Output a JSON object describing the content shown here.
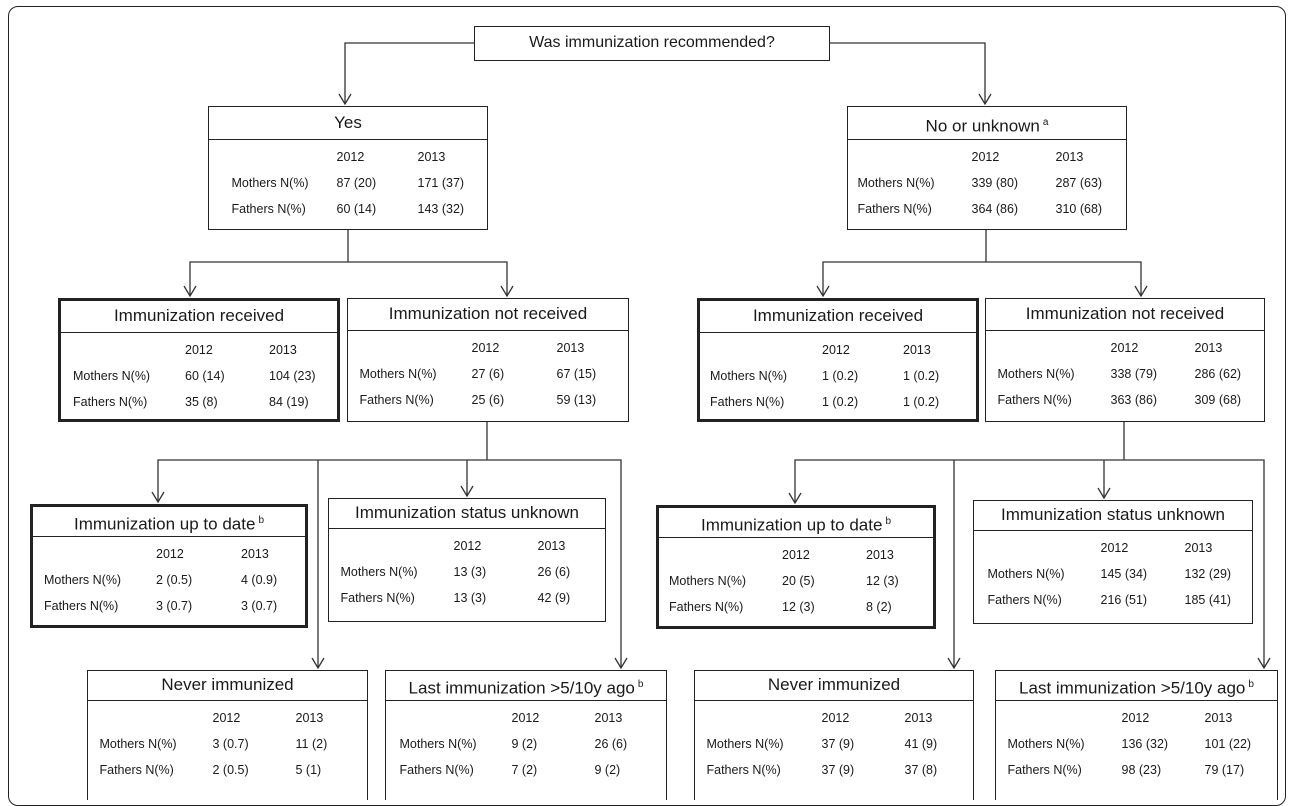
{
  "question": "Was immunization recommended?",
  "years": [
    "2012",
    "2013"
  ],
  "boxes": {
    "yes": {
      "title": "Yes",
      "sup": "",
      "rows": [
        {
          "label": "Mothers N(%)",
          "v2012": "87 (20)",
          "v2013": "171 (37)"
        },
        {
          "label": "Fathers N(%)",
          "v2012": "60 (14)",
          "v2013": "143 (32)"
        }
      ]
    },
    "no": {
      "title": "No or unknown",
      "sup": "a",
      "rows": [
        {
          "label": "Mothers N(%)",
          "v2012": "339 (80)",
          "v2013": "287 (63)"
        },
        {
          "label": "Fathers N(%)",
          "v2012": "364 (86)",
          "v2013": "310 (68)"
        }
      ]
    },
    "yes_received": {
      "title": "Immunization received",
      "sup": "",
      "rows": [
        {
          "label": "Mothers N(%)",
          "v2012": "60 (14)",
          "v2013": "104 (23)"
        },
        {
          "label": "Fathers N(%)",
          "v2012": "35 (8)",
          "v2013": "84 (19)"
        }
      ]
    },
    "yes_not_received": {
      "title": "Immunization not received",
      "sup": "",
      "rows": [
        {
          "label": "Mothers N(%)",
          "v2012": "27 (6)",
          "v2013": "67 (15)"
        },
        {
          "label": "Fathers N(%)",
          "v2012": "25 (6)",
          "v2013": "59 (13)"
        }
      ]
    },
    "no_received": {
      "title": "Immunization received",
      "sup": "",
      "rows": [
        {
          "label": "Mothers N(%)",
          "v2012": "1 (0.2)",
          "v2013": "1 (0.2)"
        },
        {
          "label": "Fathers N(%)",
          "v2012": "1 (0.2)",
          "v2013": "1 (0.2)"
        }
      ]
    },
    "no_not_received": {
      "title": "Immunization not received",
      "sup": "",
      "rows": [
        {
          "label": "Mothers N(%)",
          "v2012": "338 (79)",
          "v2013": "286 (62)"
        },
        {
          "label": "Fathers N(%)",
          "v2012": "363 (86)",
          "v2013": "309 (68)"
        }
      ]
    },
    "yes_uptodate": {
      "title": "Immunization up to date",
      "sup": "b",
      "rows": [
        {
          "label": "Mothers N(%)",
          "v2012": "2 (0.5)",
          "v2013": "4 (0.9)"
        },
        {
          "label": "Fathers N(%)",
          "v2012": "3 (0.7)",
          "v2013": "3 (0.7)"
        }
      ]
    },
    "yes_status_unknown": {
      "title": "Immunization status unknown",
      "sup": "",
      "rows": [
        {
          "label": "Mothers N(%)",
          "v2012": "13 (3)",
          "v2013": "26 (6)"
        },
        {
          "label": "Fathers N(%)",
          "v2012": "13 (3)",
          "v2013": "42 (9)"
        }
      ]
    },
    "no_uptodate": {
      "title": "Immunization up to date",
      "sup": "b",
      "rows": [
        {
          "label": "Mothers N(%)",
          "v2012": "20 (5)",
          "v2013": "12 (3)"
        },
        {
          "label": "Fathers N(%)",
          "v2012": "12 (3)",
          "v2013": "8 (2)"
        }
      ]
    },
    "no_status_unknown": {
      "title": "Immunization status unknown",
      "sup": "",
      "rows": [
        {
          "label": "Mothers N(%)",
          "v2012": "145 (34)",
          "v2013": "132 (29)"
        },
        {
          "label": "Fathers N(%)",
          "v2012": "216 (51)",
          "v2013": "185 (41)"
        }
      ]
    },
    "yes_never": {
      "title": "Never immunized",
      "sup": "",
      "rows": [
        {
          "label": "Mothers N(%)",
          "v2012": "3 (0.7)",
          "v2013": "11 (2)"
        },
        {
          "label": "Fathers N(%)",
          "v2012": "2 (0.5)",
          "v2013": "5 (1)"
        }
      ]
    },
    "yes_last": {
      "title": "Last immunization >5/10y ago",
      "sup": "b",
      "rows": [
        {
          "label": "Mothers N(%)",
          "v2012": "9 (2)",
          "v2013": "26 (6)"
        },
        {
          "label": "Fathers N(%)",
          "v2012": "7 (2)",
          "v2013": "9 (2)"
        }
      ]
    },
    "no_never": {
      "title": "Never immunized",
      "sup": "",
      "rows": [
        {
          "label": "Mothers N(%)",
          "v2012": "37 (9)",
          "v2013": "41 (9)"
        },
        {
          "label": "Fathers N(%)",
          "v2012": "37 (9)",
          "v2013": "37 (8)"
        }
      ]
    },
    "no_last": {
      "title": "Last immunization >5/10y ago",
      "sup": "b",
      "rows": [
        {
          "label": "Mothers N(%)",
          "v2012": "136 (32)",
          "v2013": "101 (22)"
        },
        {
          "label": "Fathers N(%)",
          "v2012": "98 (23)",
          "v2013": "79 (17)"
        }
      ]
    }
  }
}
